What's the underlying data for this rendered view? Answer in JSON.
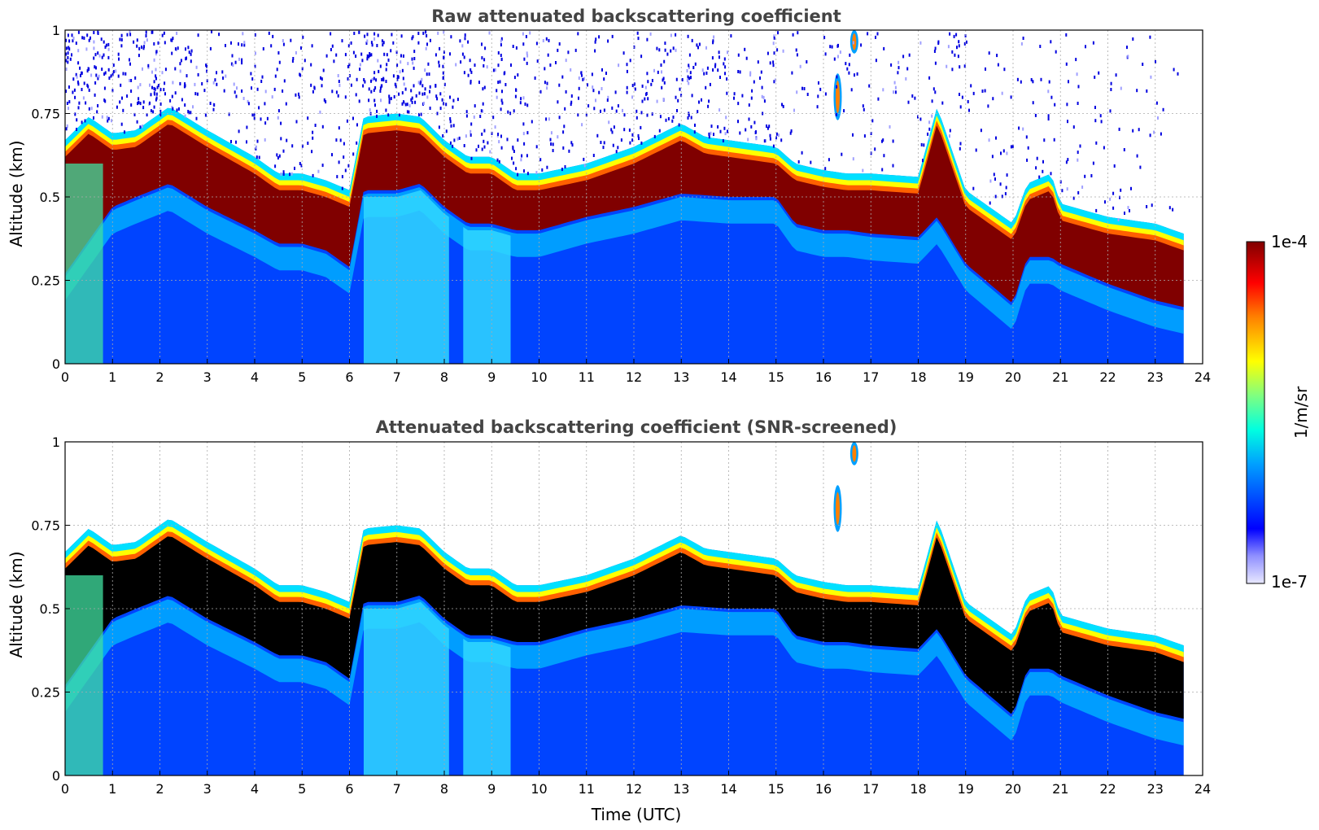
{
  "chart_data": [
    {
      "type": "heatmap",
      "title": "Raw attenuated backscattering coefficient",
      "xlabel": "",
      "ylabel": "Altitude (km)",
      "xlim": [
        0,
        24
      ],
      "ylim": [
        0,
        1
      ],
      "xticks": [
        "0",
        "1",
        "2",
        "3",
        "4",
        "5",
        "6",
        "7",
        "8",
        "9",
        "10",
        "11",
        "12",
        "13",
        "14",
        "15",
        "16",
        "17",
        "18",
        "19",
        "20",
        "21",
        "22",
        "23",
        "24"
      ],
      "yticks": [
        "0",
        "0.25",
        "0.5",
        "0.75",
        "1"
      ],
      "grid": true,
      "data_end_time": 23.6,
      "layer_top": [
        [
          0,
          0.65
        ],
        [
          0.5,
          0.72
        ],
        [
          1,
          0.67
        ],
        [
          1.5,
          0.68
        ],
        [
          2.2,
          0.75
        ],
        [
          3,
          0.68
        ],
        [
          4,
          0.6
        ],
        [
          4.5,
          0.55
        ],
        [
          5,
          0.55
        ],
        [
          5.5,
          0.53
        ],
        [
          6,
          0.5
        ],
        [
          6.3,
          0.72
        ],
        [
          7,
          0.73
        ],
        [
          7.5,
          0.72
        ],
        [
          8,
          0.65
        ],
        [
          8.5,
          0.6
        ],
        [
          9,
          0.6
        ],
        [
          9.5,
          0.55
        ],
        [
          10,
          0.55
        ],
        [
          11,
          0.58
        ],
        [
          12,
          0.63
        ],
        [
          13,
          0.7
        ],
        [
          13.5,
          0.66
        ],
        [
          14,
          0.65
        ],
        [
          15,
          0.63
        ],
        [
          15.4,
          0.58
        ],
        [
          16,
          0.56
        ],
        [
          16.5,
          0.55
        ],
        [
          17,
          0.55
        ],
        [
          18,
          0.54
        ],
        [
          18.4,
          0.75
        ],
        [
          19,
          0.5
        ],
        [
          19.5,
          0.45
        ],
        [
          20,
          0.4
        ],
        [
          20.3,
          0.52
        ],
        [
          20.8,
          0.55
        ],
        [
          21,
          0.46
        ],
        [
          22,
          0.42
        ],
        [
          23,
          0.4
        ],
        [
          23.6,
          0.37
        ]
      ],
      "layer_bottom": [
        [
          0,
          0.25
        ],
        [
          0.5,
          0.35
        ],
        [
          1,
          0.45
        ],
        [
          1.5,
          0.48
        ],
        [
          2.2,
          0.52
        ],
        [
          3,
          0.45
        ],
        [
          4,
          0.38
        ],
        [
          4.5,
          0.34
        ],
        [
          5,
          0.34
        ],
        [
          5.5,
          0.32
        ],
        [
          6,
          0.27
        ],
        [
          6.3,
          0.5
        ],
        [
          7,
          0.5
        ],
        [
          7.5,
          0.52
        ],
        [
          8,
          0.45
        ],
        [
          8.5,
          0.4
        ],
        [
          9,
          0.4
        ],
        [
          9.5,
          0.38
        ],
        [
          10,
          0.38
        ],
        [
          11,
          0.42
        ],
        [
          12,
          0.45
        ],
        [
          13,
          0.49
        ],
        [
          14,
          0.48
        ],
        [
          15,
          0.48
        ],
        [
          15.4,
          0.4
        ],
        [
          16,
          0.38
        ],
        [
          16.5,
          0.38
        ],
        [
          17,
          0.37
        ],
        [
          18,
          0.36
        ],
        [
          18.4,
          0.42
        ],
        [
          19,
          0.28
        ],
        [
          19.5,
          0.22
        ],
        [
          20,
          0.16
        ],
        [
          20.3,
          0.3
        ],
        [
          20.8,
          0.3
        ],
        [
          21,
          0.28
        ],
        [
          22,
          0.22
        ],
        [
          23,
          0.17
        ],
        [
          23.6,
          0.15
        ]
      ],
      "features": [
        {
          "time": 16.3,
          "alt_min": 0.73,
          "alt_max": 0.87
        },
        {
          "time": 16.65,
          "alt_min": 0.93,
          "alt_max": 1.0
        }
      ]
    },
    {
      "type": "heatmap",
      "title": "Attenuated backscattering coefficient (SNR-screened)",
      "xlabel": "Time (UTC)",
      "ylabel": "Altitude (km)",
      "xlim": [
        0,
        24
      ],
      "ylim": [
        0,
        1
      ],
      "xticks": [
        "0",
        "1",
        "2",
        "3",
        "4",
        "5",
        "6",
        "7",
        "8",
        "9",
        "10",
        "11",
        "12",
        "13",
        "14",
        "15",
        "16",
        "17",
        "18",
        "19",
        "20",
        "21",
        "22",
        "23",
        "24"
      ],
      "yticks": [
        "0",
        "0.25",
        "0.5",
        "0.75",
        "1"
      ],
      "grid": true,
      "saturated_color": "#000000"
    }
  ],
  "colorbar": {
    "label": "1/m/sr",
    "max_label": "1e-4",
    "min_label": "1e-7",
    "scale": "log",
    "colors": [
      "#e8e8ff",
      "#c0c0ff",
      "#8080ff",
      "#0000ff",
      "#0050ff",
      "#00a0ff",
      "#00e0ff",
      "#40ffc0",
      "#a0ff60",
      "#ffff00",
      "#ffa000",
      "#ff3000",
      "#c00000",
      "#800000"
    ]
  }
}
